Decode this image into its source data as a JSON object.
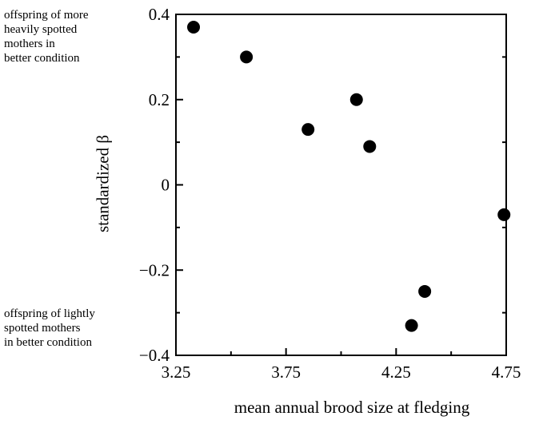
{
  "annotations": {
    "top": "offspring of more\nheavily spotted\nmothers in\nbetter condition",
    "bottom": "offspring of lightly\nspotted mothers\nin better condition"
  },
  "chart_data": {
    "type": "scatter",
    "xlabel": "mean annual brood size at fledging",
    "ylabel": "standardized β",
    "xlim": [
      3.25,
      4.75
    ],
    "ylim": [
      -0.4,
      0.4
    ],
    "xticks": [
      3.25,
      3.75,
      4.25,
      4.75
    ],
    "xtick_labels": [
      "3.25",
      "3.75",
      "4.25",
      "4.75"
    ],
    "yticks": [
      -0.4,
      -0.2,
      0,
      0.2,
      0.4
    ],
    "ytick_labels": [
      "−0.4",
      "−0.2",
      "0",
      "0.2",
      "0.4"
    ],
    "grid": false,
    "series": [
      {
        "x": [
          3.33,
          3.57,
          3.85,
          4.07,
          4.13,
          4.32,
          4.38,
          4.74
        ],
        "y": [
          0.37,
          0.3,
          0.13,
          0.2,
          0.09,
          -0.33,
          -0.25,
          -0.07
        ]
      }
    ],
    "marker_color": "#000000"
  }
}
